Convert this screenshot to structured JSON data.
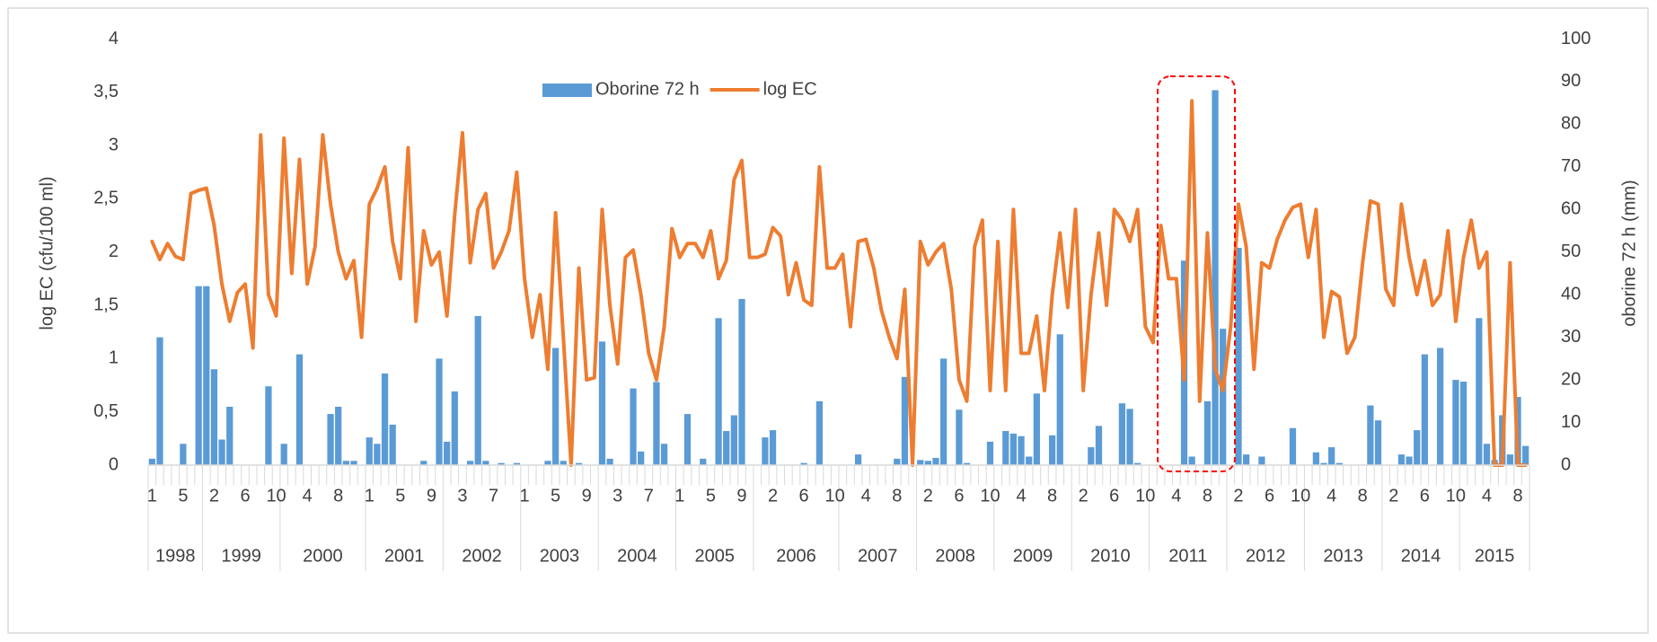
{
  "chart_data": {
    "type": "combo",
    "y_label": "log EC (cfu/100 ml)",
    "y2_label": "oborine 72 h (mm)",
    "legend": "top",
    "grid": false,
    "ylim": [
      0,
      4
    ],
    "yticks": [
      0,
      {
        "value": 0.5,
        "label": "0,5"
      },
      1,
      {
        "value": 1.5,
        "label": "1,5"
      },
      2,
      {
        "value": 2.5,
        "label": "2,5"
      },
      3,
      {
        "value": 3.5,
        "label": "3,5"
      },
      4
    ],
    "y2lim": [
      0,
      100
    ],
    "y2ticks": [
      0,
      10,
      20,
      30,
      40,
      50,
      60,
      70,
      80,
      90,
      100
    ],
    "categories": [
      "1",
      null,
      null,
      null,
      "5",
      null,
      null,
      null,
      "2",
      null,
      null,
      null,
      "6",
      null,
      null,
      null,
      "10",
      null,
      null,
      null,
      "4",
      null,
      null,
      null,
      "8",
      null,
      null,
      null,
      "1",
      null,
      null,
      null,
      "5",
      null,
      null,
      null,
      "9",
      null,
      null,
      null,
      "3",
      null,
      null,
      null,
      "7",
      null,
      null,
      null,
      "1",
      null,
      null,
      null,
      "5",
      null,
      null,
      null,
      "9",
      null,
      null,
      null,
      "3",
      null,
      null,
      null,
      "7",
      null,
      null,
      null,
      "1",
      null,
      null,
      null,
      "5",
      null,
      null,
      null,
      "9",
      null,
      null,
      null,
      "2",
      null,
      null,
      null,
      "6",
      null,
      null,
      null,
      "10",
      null,
      null,
      null,
      "4",
      null,
      null,
      null,
      "8",
      null,
      null,
      null,
      "2",
      null,
      null,
      null,
      "6",
      null,
      null,
      null,
      "10",
      null,
      null,
      null,
      "4",
      null,
      null,
      null,
      "8",
      null,
      null,
      null,
      "2",
      null,
      null,
      null,
      "6",
      null,
      null,
      null,
      "10",
      null,
      null,
      null,
      "4",
      null,
      null,
      null,
      "8",
      null,
      null,
      null,
      "2",
      null,
      null,
      null,
      "6",
      null,
      null,
      null,
      "10",
      null,
      null,
      null,
      "4",
      null,
      null,
      null,
      "8",
      null,
      null,
      null,
      "2",
      null,
      null,
      null,
      "6",
      null,
      null,
      null,
      "10",
      null,
      null,
      null,
      "4",
      null,
      null,
      null,
      "8",
      null
    ],
    "years": [
      "1998",
      "1998",
      "1998",
      "1998",
      "1998",
      "1998",
      "1998",
      "1999",
      "1999",
      "1999",
      "1999",
      "1999",
      "1999",
      "1999",
      "1999",
      "1999",
      "1999",
      "2000",
      "2000",
      "2000",
      "2000",
      "2000",
      "2000",
      "2000",
      "2000",
      "2000",
      "2000",
      "2000",
      "2001",
      "2001",
      "2001",
      "2001",
      "2001",
      "2001",
      "2001",
      "2001",
      "2001",
      "2001",
      "2002",
      "2002",
      "2002",
      "2002",
      "2002",
      "2002",
      "2002",
      "2002",
      "2002",
      "2002",
      "2003",
      "2003",
      "2003",
      "2003",
      "2003",
      "2003",
      "2003",
      "2003",
      "2003",
      "2003",
      "2004",
      "2004",
      "2004",
      "2004",
      "2004",
      "2004",
      "2004",
      "2004",
      "2004",
      "2004",
      "2005",
      "2005",
      "2005",
      "2005",
      "2005",
      "2005",
      "2005",
      "2005",
      "2005",
      "2005",
      "2006",
      "2006",
      "2006",
      "2006",
      "2006",
      "2006",
      "2006",
      "2006",
      "2006",
      "2006",
      "2006",
      "2007",
      "2007",
      "2007",
      "2007",
      "2007",
      "2007",
      "2007",
      "2007",
      "2007",
      "2007",
      "2008",
      "2008",
      "2008",
      "2008",
      "2008",
      "2008",
      "2008",
      "2008",
      "2008",
      "2008",
      "2009",
      "2009",
      "2009",
      "2009",
      "2009",
      "2009",
      "2009",
      "2009",
      "2009",
      "2009",
      "2010",
      "2010",
      "2010",
      "2010",
      "2010",
      "2010",
      "2010",
      "2010",
      "2010",
      "2010",
      "2011",
      "2011",
      "2011",
      "2011",
      "2011",
      "2011",
      "2011",
      "2011",
      "2011",
      "2011",
      "2012",
      "2012",
      "2012",
      "2012",
      "2012",
      "2012",
      "2012",
      "2012",
      "2012",
      "2012",
      "2013",
      "2013",
      "2013",
      "2013",
      "2013",
      "2013",
      "2013",
      "2013",
      "2013",
      "2013",
      "2014",
      "2014",
      "2014",
      "2014",
      "2014",
      "2014",
      "2014",
      "2014",
      "2014",
      "2014",
      "2015",
      "2015",
      "2015",
      "2015",
      "2015",
      "2015",
      "2015",
      "2015",
      "2015"
    ],
    "series": [
      {
        "name": "Oborine 72 h",
        "type": "bar",
        "axis": "y2",
        "color": "#5b9bd5",
        "values": [
          1.5,
          30,
          0,
          0,
          5,
          0,
          42,
          42,
          22.5,
          6,
          13.7,
          0,
          0,
          0,
          0,
          18.5,
          0,
          5,
          0,
          26,
          0,
          0,
          0,
          12,
          13.7,
          1,
          1,
          0,
          6.5,
          5,
          21.5,
          9.5,
          0,
          0,
          0,
          1,
          0,
          25,
          5.5,
          17.3,
          0,
          1,
          35,
          1,
          0,
          0.5,
          0,
          0.5,
          0,
          0,
          0,
          1,
          27.5,
          1,
          0,
          0.5,
          0,
          0,
          29,
          1.5,
          0,
          0,
          18,
          3.2,
          0,
          19.5,
          5,
          0,
          0,
          12,
          0,
          1.5,
          0,
          34.5,
          8,
          11.7,
          39,
          0,
          0,
          6.5,
          8.2,
          0,
          0,
          0,
          0.5,
          0,
          15,
          0,
          0,
          0,
          0,
          2.5,
          0,
          0,
          0,
          0,
          1.5,
          20.7,
          0,
          1.2,
          1,
          1.7,
          25,
          0,
          13,
          0.5,
          0,
          0,
          5.5,
          0,
          8,
          7.4,
          6.8,
          2,
          16.8,
          0,
          7,
          30.7,
          0,
          0,
          0,
          4.2,
          9.2,
          0,
          0,
          14.5,
          13.2,
          0.5,
          0,
          0,
          0,
          0,
          0,
          48,
          2,
          0,
          15,
          88,
          32,
          0,
          51,
          2.5,
          0,
          2,
          0,
          0,
          0,
          8.7,
          0,
          0,
          3,
          0.5,
          4.2,
          0.5,
          0,
          0,
          0,
          14,
          10.5,
          0,
          0,
          2.5,
          2,
          8.2,
          26,
          0,
          27.5,
          0,
          20,
          19.6,
          0,
          34.5,
          5,
          1.2,
          11.7,
          2.5,
          16,
          4.5
        ]
      },
      {
        "name": "log EC",
        "type": "line",
        "axis": "y",
        "color": "#ed7d31",
        "values": [
          2.1,
          1.93,
          2.08,
          1.96,
          1.93,
          2.55,
          2.58,
          2.6,
          2.25,
          1.7,
          1.35,
          1.62,
          1.7,
          1.1,
          3.1,
          1.6,
          1.4,
          3.07,
          1.8,
          2.87,
          1.7,
          2.05,
          3.1,
          2.45,
          2.0,
          1.75,
          1.92,
          1.2,
          2.45,
          2.6,
          2.8,
          2.1,
          1.75,
          2.98,
          1.35,
          2.2,
          1.88,
          2.0,
          1.4,
          2.35,
          3.12,
          1.9,
          2.4,
          2.55,
          1.85,
          2.0,
          2.2,
          2.75,
          1.75,
          1.2,
          1.6,
          0.9,
          2.37,
          1.2,
          0,
          1.85,
          0.8,
          0.82,
          2.4,
          1.5,
          0.95,
          1.95,
          2.02,
          1.6,
          1.05,
          0.8,
          1.3,
          2.22,
          1.95,
          2.08,
          2.08,
          1.95,
          2.2,
          1.75,
          1.92,
          2.68,
          2.86,
          1.95,
          1.95,
          1.98,
          2.23,
          2.15,
          1.6,
          1.9,
          1.55,
          1.5,
          2.8,
          1.85,
          1.85,
          1.98,
          1.3,
          2.1,
          2.12,
          1.85,
          1.45,
          1.2,
          1.0,
          1.65,
          0,
          2.1,
          1.88,
          2.0,
          2.08,
          1.65,
          0.8,
          0.6,
          2.05,
          2.3,
          0.7,
          2.1,
          0.7,
          2.4,
          1.05,
          1.05,
          1.4,
          0.7,
          1.6,
          2.18,
          1.48,
          2.4,
          0.7,
          1.6,
          2.18,
          1.5,
          2.4,
          2.3,
          2.1,
          2.4,
          1.3,
          1.15,
          2.25,
          1.75,
          1.75,
          0.8,
          3.42,
          0.6,
          2.18,
          0.9,
          0.7,
          1.3,
          2.45,
          2.05,
          0.9,
          1.9,
          1.85,
          2.12,
          2.3,
          2.42,
          2.45,
          1.95,
          2.4,
          1.2,
          1.63,
          1.58,
          1.05,
          1.2,
          1.9,
          2.48,
          2.45,
          1.65,
          1.5,
          2.45,
          1.95,
          1.6,
          1.92,
          1.5,
          1.6,
          2.2,
          1.35,
          1.95,
          2.3,
          1.85,
          2.0,
          0,
          0,
          1.9,
          0,
          0
        ]
      }
    ]
  }
}
